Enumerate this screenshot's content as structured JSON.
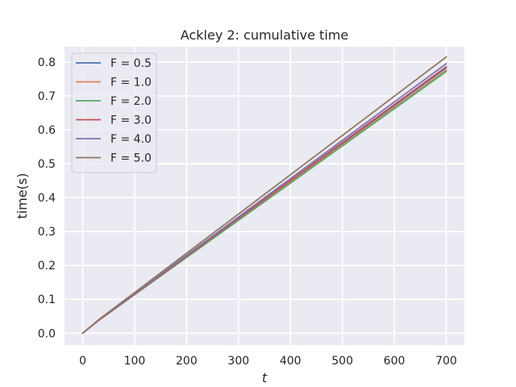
{
  "chart_data": {
    "type": "line",
    "title": "Ackley 2: cumulative time",
    "xlabel": "t",
    "ylabel": "time(s)",
    "xlim": [
      -35,
      735
    ],
    "ylim": [
      -0.035,
      0.845
    ],
    "xticks": [
      0,
      100,
      200,
      300,
      400,
      500,
      600,
      700
    ],
    "yticks": [
      0.0,
      0.1,
      0.2,
      0.3,
      0.4,
      0.5,
      0.6,
      0.7,
      0.8
    ],
    "xtick_labels": [
      "0",
      "100",
      "200",
      "300",
      "400",
      "500",
      "600",
      "700"
    ],
    "ytick_labels": [
      "0.0",
      "0.1",
      "0.2",
      "0.3",
      "0.4",
      "0.5",
      "0.6",
      "0.7",
      "0.8"
    ],
    "grid": true,
    "legend_position": "upper-left",
    "series": [
      {
        "name": "F = 0.5",
        "color": "#4c72b0",
        "x": [
          0,
          30,
          700
        ],
        "y": [
          0.0,
          0.037,
          0.783
        ]
      },
      {
        "name": "F = 1.0",
        "color": "#dd8452",
        "x": [
          0,
          30,
          700
        ],
        "y": [
          0.0,
          0.037,
          0.776
        ]
      },
      {
        "name": "F = 2.0",
        "color": "#55a868",
        "x": [
          0,
          30,
          700
        ],
        "y": [
          0.0,
          0.037,
          0.772
        ]
      },
      {
        "name": "F = 3.0",
        "color": "#c44e52",
        "x": [
          0,
          30,
          700
        ],
        "y": [
          0.0,
          0.037,
          0.786
        ]
      },
      {
        "name": "F = 4.0",
        "color": "#8172b3",
        "x": [
          0,
          30,
          700
        ],
        "y": [
          0.0,
          0.038,
          0.795
        ]
      },
      {
        "name": "F = 5.0",
        "color": "#937860",
        "x": [
          0,
          30,
          700
        ],
        "y": [
          0.0,
          0.039,
          0.815
        ]
      }
    ]
  }
}
